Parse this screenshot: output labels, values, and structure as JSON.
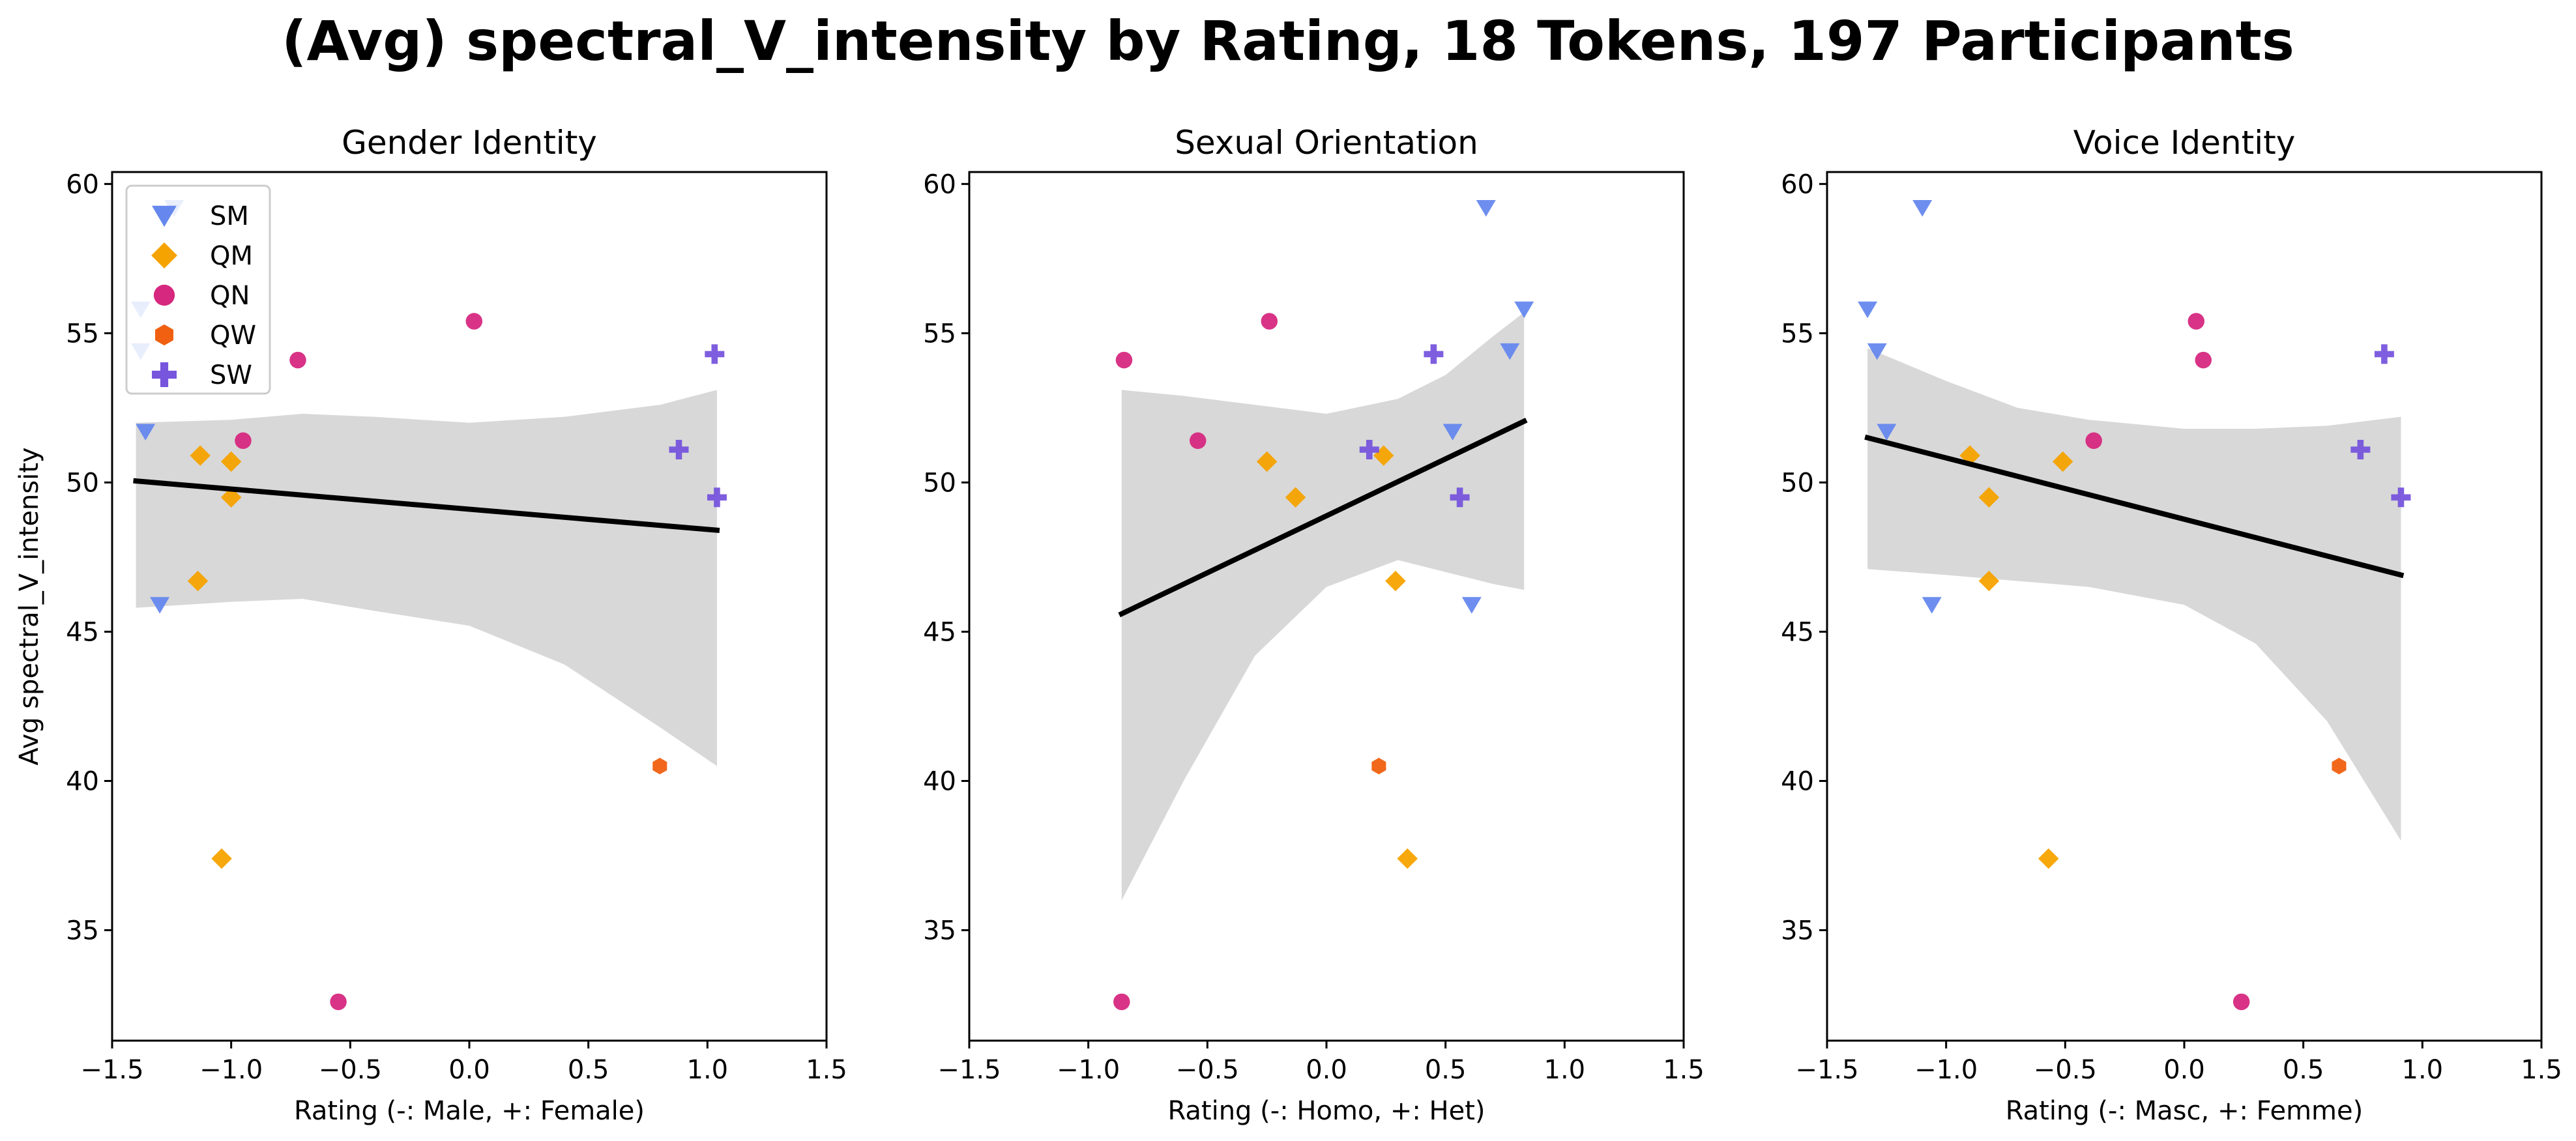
{
  "suptitle": "(Avg) spectral_V_intensity by Rating, 18 Tokens, 197 Participants",
  "colors": {
    "SM": "#6688ee",
    "QM": "#f5a300",
    "QN": "#d6287f",
    "QW": "#f06010",
    "SW": "#7755dd",
    "band": "#d8d8d8",
    "line": "#000000"
  },
  "chart_data": [
    {
      "type": "scatter",
      "title": "Gender Identity",
      "xlabel": "Rating (-: Male, +: Female)",
      "ylabel": "Avg spectral_V_intensity",
      "xlim": [
        -1.5,
        1.5
      ],
      "ylim": [
        31.3,
        60.4
      ],
      "xticks": [
        "-1.5",
        "-1.0",
        "-0.5",
        "0.0",
        "0.5",
        "1.0",
        "1.5"
      ],
      "yticks": [
        "35",
        "40",
        "45",
        "50",
        "55",
        "60"
      ],
      "legend": {
        "placement": "top-left",
        "entries": [
          "SM",
          "QM",
          "QN",
          "QW",
          "SW"
        ]
      },
      "series": [
        {
          "name": "SM",
          "marker": "triangle-down",
          "points": [
            [
              -1.38,
              55.8
            ],
            [
              -1.38,
              54.4
            ],
            [
              -1.24,
              59.2
            ],
            [
              -1.36,
              51.7
            ],
            [
              -1.3,
              45.9
            ]
          ]
        },
        {
          "name": "QM",
          "marker": "diamond",
          "points": [
            [
              -1.13,
              50.9
            ],
            [
              -1.0,
              50.7
            ],
            [
              -1.0,
              49.5
            ],
            [
              -1.14,
              46.7
            ],
            [
              -1.04,
              37.4
            ]
          ]
        },
        {
          "name": "QN",
          "marker": "circle",
          "points": [
            [
              0.02,
              55.4
            ],
            [
              -0.72,
              54.1
            ],
            [
              -0.95,
              51.4
            ],
            [
              -0.55,
              32.6
            ]
          ]
        },
        {
          "name": "QW",
          "marker": "hexagon",
          "points": [
            [
              0.8,
              40.5
            ]
          ]
        },
        {
          "name": "SW",
          "marker": "plus",
          "points": [
            [
              1.03,
              54.3
            ],
            [
              0.88,
              51.1
            ],
            [
              1.04,
              49.5
            ]
          ]
        }
      ],
      "fit": {
        "x": [
          -1.4,
          1.04
        ],
        "y": [
          50.05,
          48.4
        ]
      },
      "ci_band": {
        "x": [
          -1.4,
          -1.0,
          -0.7,
          -0.4,
          0.0,
          0.4,
          0.8,
          1.04
        ],
        "upper": [
          52.0,
          52.1,
          52.3,
          52.2,
          52.0,
          52.2,
          52.6,
          53.1
        ],
        "lower": [
          45.8,
          46.0,
          46.1,
          45.7,
          45.2,
          43.9,
          41.8,
          40.5
        ]
      }
    },
    {
      "type": "scatter",
      "title": "Sexual Orientation",
      "xlabel": "Rating (-: Homo, +: Het)",
      "ylabel": "",
      "xlim": [
        -1.5,
        1.5
      ],
      "ylim": [
        31.3,
        60.4
      ],
      "xticks": [
        "-1.5",
        "-1.0",
        "-0.5",
        "0.0",
        "0.5",
        "1.0",
        "1.5"
      ],
      "yticks": [
        "35",
        "40",
        "45",
        "50",
        "55",
        "60"
      ],
      "series": [
        {
          "name": "SM",
          "marker": "triangle-down",
          "points": [
            [
              0.67,
              59.2
            ],
            [
              0.83,
              55.8
            ],
            [
              0.77,
              54.4
            ],
            [
              0.53,
              51.7
            ],
            [
              0.61,
              45.9
            ]
          ]
        },
        {
          "name": "QM",
          "marker": "diamond",
          "points": [
            [
              -0.25,
              50.7
            ],
            [
              0.24,
              50.9
            ],
            [
              -0.13,
              49.5
            ],
            [
              0.29,
              46.7
            ],
            [
              0.34,
              37.4
            ]
          ]
        },
        {
          "name": "QN",
          "marker": "circle",
          "points": [
            [
              -0.24,
              55.4
            ],
            [
              -0.85,
              54.1
            ],
            [
              -0.54,
              51.4
            ],
            [
              -0.86,
              32.6
            ]
          ]
        },
        {
          "name": "QW",
          "marker": "hexagon",
          "points": [
            [
              0.22,
              40.5
            ]
          ]
        },
        {
          "name": "SW",
          "marker": "plus",
          "points": [
            [
              0.45,
              54.3
            ],
            [
              0.18,
              51.1
            ],
            [
              0.56,
              49.5
            ]
          ]
        }
      ],
      "fit": {
        "x": [
          -0.86,
          0.83
        ],
        "y": [
          45.6,
          52.05
        ]
      },
      "ci_band": {
        "x": [
          -0.86,
          -0.6,
          -0.3,
          0.0,
          0.3,
          0.5,
          0.7,
          0.83
        ],
        "upper": [
          53.1,
          52.9,
          52.6,
          52.3,
          52.8,
          53.6,
          54.9,
          55.7
        ],
        "lower": [
          36.0,
          40.0,
          44.2,
          46.5,
          47.4,
          47.0,
          46.6,
          46.4
        ]
      }
    },
    {
      "type": "scatter",
      "title": "Voice Identity",
      "xlabel": "Rating (-: Masc, +: Femme)",
      "ylabel": "",
      "xlim": [
        -1.5,
        1.5
      ],
      "ylim": [
        31.3,
        60.4
      ],
      "xticks": [
        "-1.5",
        "-1.0",
        "-0.5",
        "0.0",
        "0.5",
        "1.0",
        "1.5"
      ],
      "yticks": [
        "35",
        "40",
        "45",
        "50",
        "55",
        "60"
      ],
      "series": [
        {
          "name": "SM",
          "marker": "triangle-down",
          "points": [
            [
              -1.1,
              59.2
            ],
            [
              -1.33,
              55.8
            ],
            [
              -1.29,
              54.4
            ],
            [
              -1.25,
              51.7
            ],
            [
              -1.06,
              45.9
            ]
          ]
        },
        {
          "name": "QM",
          "marker": "diamond",
          "points": [
            [
              -0.9,
              50.9
            ],
            [
              -0.51,
              50.7
            ],
            [
              -0.82,
              49.5
            ],
            [
              -0.82,
              46.7
            ],
            [
              -0.57,
              37.4
            ]
          ]
        },
        {
          "name": "QN",
          "marker": "circle",
          "points": [
            [
              0.05,
              55.4
            ],
            [
              0.08,
              54.1
            ],
            [
              -0.38,
              51.4
            ],
            [
              0.24,
              32.6
            ]
          ]
        },
        {
          "name": "QW",
          "marker": "hexagon",
          "points": [
            [
              0.65,
              40.5
            ]
          ]
        },
        {
          "name": "SW",
          "marker": "plus",
          "points": [
            [
              0.84,
              54.3
            ],
            [
              0.74,
              51.1
            ],
            [
              0.91,
              49.5
            ]
          ]
        }
      ],
      "fit": {
        "x": [
          -1.33,
          0.91
        ],
        "y": [
          51.5,
          46.9
        ]
      },
      "ci_band": {
        "x": [
          -1.33,
          -1.0,
          -0.7,
          -0.4,
          0.0,
          0.3,
          0.6,
          0.91
        ],
        "upper": [
          54.5,
          53.4,
          52.5,
          52.1,
          51.8,
          51.8,
          51.9,
          52.2
        ],
        "lower": [
          47.1,
          46.9,
          46.7,
          46.5,
          45.9,
          44.6,
          42.0,
          38.0
        ]
      }
    }
  ]
}
